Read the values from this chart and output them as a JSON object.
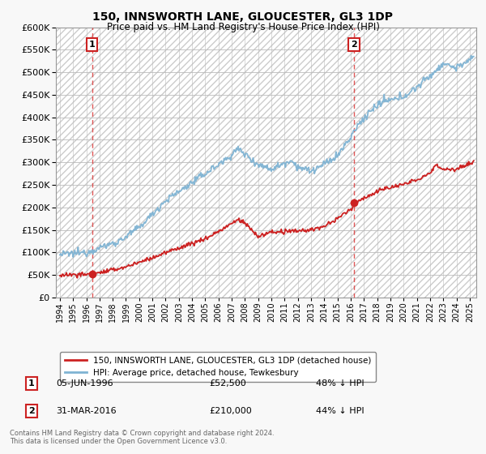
{
  "title1": "150, INNSWORTH LANE, GLOUCESTER, GL3 1DP",
  "title2": "Price paid vs. HM Land Registry's House Price Index (HPI)",
  "ylim": [
    0,
    600000
  ],
  "xlim_start": 1993.7,
  "xlim_end": 2025.5,
  "sale1_x": 1996.43,
  "sale1_y": 52500,
  "sale1_label": "1",
  "sale1_date": "05-JUN-1996",
  "sale1_price": "£52,500",
  "sale1_hpi": "48% ↓ HPI",
  "sale2_x": 2016.25,
  "sale2_y": 210000,
  "sale2_label": "2",
  "sale2_date": "31-MAR-2016",
  "sale2_price": "£210,000",
  "sale2_hpi": "44% ↓ HPI",
  "red_line_color": "#cc2222",
  "blue_line_color": "#7fb3d3",
  "marker_color": "#cc2222",
  "vline_color": "#dd4444",
  "legend_label_red": "150, INNSWORTH LANE, GLOUCESTER, GL3 1DP (detached house)",
  "legend_label_blue": "HPI: Average price, detached house, Tewkesbury",
  "footer1": "Contains HM Land Registry data © Crown copyright and database right 2024.",
  "footer2": "This data is licensed under the Open Government Licence v3.0.",
  "fig_bg": "#f8f8f8",
  "plot_bg": "#ffffff",
  "hatch_bg": "#e8e8e8"
}
